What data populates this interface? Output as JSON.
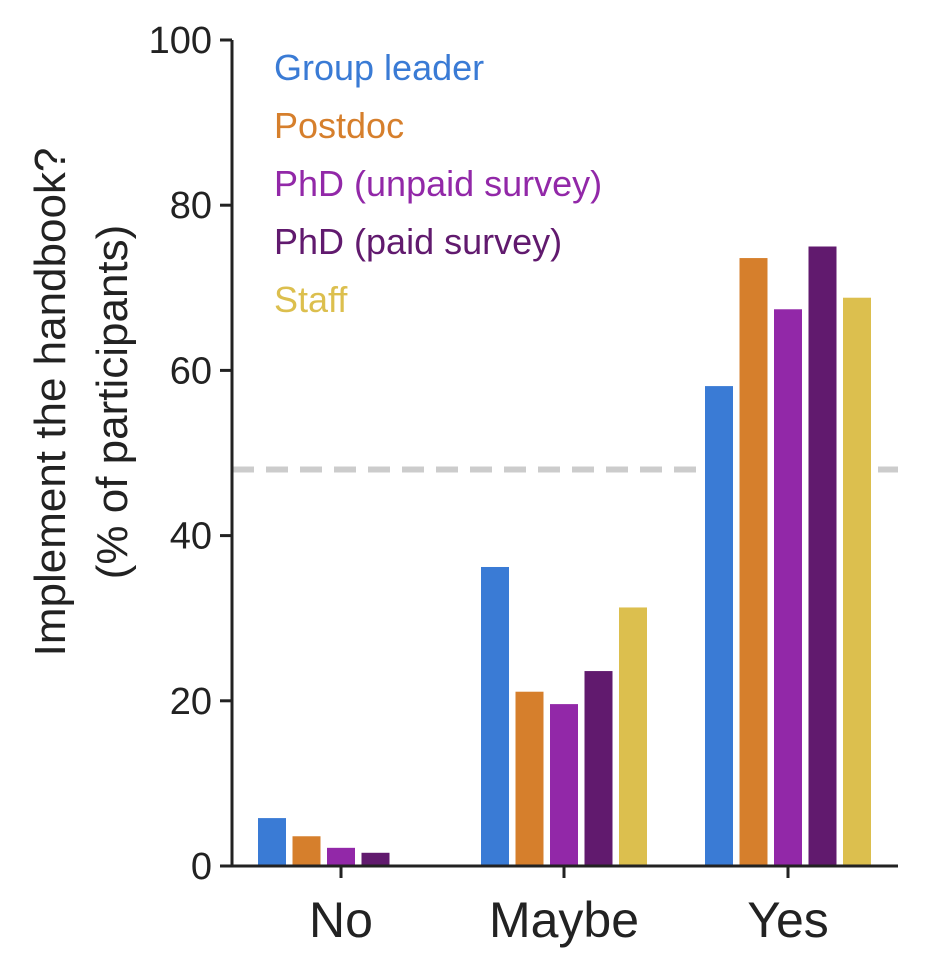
{
  "chart_data": {
    "type": "bar",
    "categories": [
      "No",
      "Maybe",
      "Yes"
    ],
    "series": [
      {
        "name": "Group leader",
        "color": "#3a7bd5",
        "values": [
          5.8,
          36.2,
          58.1
        ]
      },
      {
        "name": "Postdoc",
        "color": "#d67f2c",
        "values": [
          3.6,
          21.1,
          73.6
        ]
      },
      {
        "name": "PhD (unpaid survey)",
        "color": "#9228a8",
        "values": [
          2.2,
          19.6,
          67.4
        ]
      },
      {
        "name": "PhD (paid survey)",
        "color": "#611a6e",
        "values": [
          1.6,
          23.6,
          75.0
        ]
      },
      {
        "name": "Staff",
        "color": "#dcbf4e",
        "values": [
          0,
          31.3,
          68.8
        ]
      }
    ],
    "reference_line": {
      "y": 48,
      "style": "dashed",
      "color": "#cccccc"
    },
    "ylabel_lines": [
      "Implement the handbook?",
      "(% of participants)"
    ],
    "xlabel": "",
    "ylim": [
      0,
      100
    ],
    "yticks": [
      0,
      20,
      40,
      60,
      80,
      100
    ],
    "legend_position": "top-left",
    "grid": false
  }
}
